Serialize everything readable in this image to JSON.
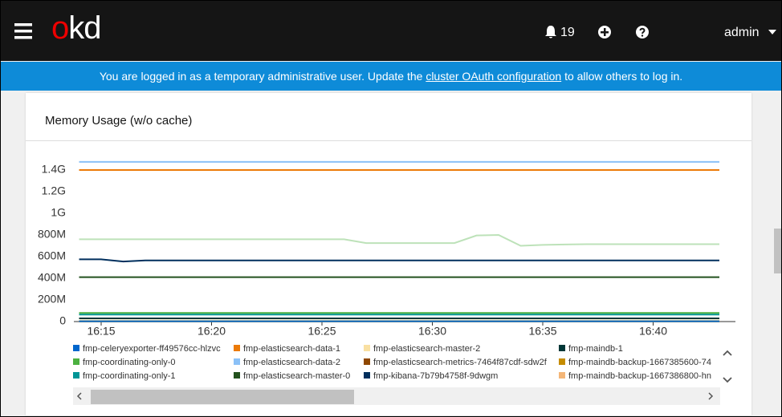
{
  "header": {
    "logo": "okd",
    "notifications": "19",
    "user": "admin"
  },
  "banner": {
    "text_before": "You are logged in as a temporary administrative user. Update the",
    "link": "cluster OAuth configuration",
    "text_after": "to allow others to log in."
  },
  "chart_data": {
    "type": "line",
    "title": "Memory Usage (w/o cache)",
    "x": [
      "16:14",
      "16:15",
      "16:16",
      "16:17",
      "16:18",
      "16:19",
      "16:20",
      "16:21",
      "16:22",
      "16:23",
      "16:24",
      "16:25",
      "16:26",
      "16:27",
      "16:28",
      "16:29",
      "16:30",
      "16:31",
      "16:32",
      "16:33",
      "16:34",
      "16:35",
      "16:36",
      "16:37",
      "16:38",
      "16:39",
      "16:40",
      "16:41",
      "16:42",
      "16:43"
    ],
    "xticks": [
      "16:15",
      "16:20",
      "16:25",
      "16:30",
      "16:35",
      "16:40"
    ],
    "ylim": [
      0,
      1500
    ],
    "yticks": [
      {
        "value": 0,
        "label": "0"
      },
      {
        "value": 200,
        "label": "200M"
      },
      {
        "value": 400,
        "label": "400M"
      },
      {
        "value": 600,
        "label": "600M"
      },
      {
        "value": 800,
        "label": "800M"
      },
      {
        "value": 1000,
        "label": "1G"
      },
      {
        "value": 1200,
        "label": "1.2G"
      },
      {
        "value": 1400,
        "label": "1.4G"
      }
    ],
    "series": [
      {
        "name": "fmp-celeryexporter-ff49576cc-hlzvc",
        "color": "#0066cc",
        "values": [
          3,
          3,
          3,
          3,
          3,
          3,
          3,
          3,
          3,
          3,
          3,
          3,
          3,
          3,
          3,
          3,
          3,
          3,
          3,
          3,
          3,
          3,
          3,
          3,
          3,
          3,
          3,
          3,
          3,
          3
        ]
      },
      {
        "name": "fmp-elasticsearch-data-1",
        "color": "#ec7a08",
        "values": [
          1400,
          1400,
          1400,
          1400,
          1400,
          1400,
          1400,
          1400,
          1400,
          1400,
          1400,
          1400,
          1400,
          1400,
          1400,
          1400,
          1400,
          1400,
          1400,
          1400,
          1400,
          1400,
          1400,
          1400,
          1400,
          1400,
          1400,
          1400,
          1400,
          1400
        ]
      },
      {
        "name": "fmp-elasticsearch-master-2",
        "color": "#f9e0a2",
        "values": [
          10,
          10,
          10,
          10,
          10,
          10,
          10,
          10,
          10,
          10,
          10,
          10,
          10,
          10,
          10,
          10,
          10,
          10,
          10,
          10,
          10,
          10,
          10,
          10,
          10,
          10,
          10,
          10,
          10,
          10
        ]
      },
      {
        "name": "fmp-maindb-1",
        "color": "#003737",
        "values": [
          30,
          30,
          30,
          30,
          30,
          30,
          30,
          30,
          30,
          30,
          30,
          30,
          30,
          30,
          30,
          30,
          30,
          30,
          30,
          30,
          30,
          30,
          30,
          30,
          30,
          30,
          30,
          30,
          30,
          30
        ]
      },
      {
        "name": "fmp-coordinating-only-0",
        "color": "#4cb140",
        "values": [
          80,
          80,
          80,
          80,
          80,
          80,
          80,
          80,
          80,
          80,
          80,
          80,
          80,
          80,
          80,
          80,
          80,
          80,
          80,
          80,
          80,
          80,
          80,
          80,
          80,
          80,
          80,
          80,
          80,
          80
        ]
      },
      {
        "name": "fmp-elasticsearch-data-2",
        "color": "#8bc1f7",
        "values": [
          1475,
          1475,
          1475,
          1475,
          1475,
          1475,
          1475,
          1475,
          1475,
          1475,
          1475,
          1475,
          1475,
          1475,
          1475,
          1475,
          1475,
          1475,
          1475,
          1475,
          1475,
          1475,
          1475,
          1475,
          1475,
          1475,
          1475,
          1475,
          1475,
          1475
        ]
      },
      {
        "name": "fmp-elasticsearch-metrics-7464f87cdf-sdw2f",
        "color": "#8f4700",
        "values": [
          6,
          6,
          6,
          6,
          6,
          6,
          6,
          6,
          6,
          6,
          6,
          6,
          6,
          6,
          6,
          6,
          6,
          6,
          6,
          6,
          6,
          6,
          6,
          6,
          6,
          6,
          6,
          6,
          6,
          6
        ]
      },
      {
        "name": "fmp-maindb-backup-1667385600-74",
        "color": "#c58c00",
        "values": [
          2,
          2,
          2,
          2,
          2,
          2,
          2,
          2,
          2,
          2,
          2,
          2,
          2,
          2,
          2,
          2,
          2,
          2,
          2,
          2,
          2,
          2,
          2,
          2,
          2,
          2,
          2,
          2,
          2,
          2
        ]
      },
      {
        "name": "fmp-coordinating-only-1",
        "color": "#009596",
        "values": [
          65,
          65,
          65,
          65,
          65,
          65,
          65,
          65,
          65,
          65,
          65,
          65,
          65,
          65,
          65,
          65,
          65,
          65,
          65,
          65,
          65,
          65,
          65,
          65,
          65,
          65,
          65,
          65,
          65,
          65
        ]
      },
      {
        "name": "fmp-elasticsearch-master-0",
        "color": "#23511e",
        "values": [
          410,
          410,
          410,
          410,
          410,
          410,
          410,
          410,
          410,
          410,
          410,
          410,
          410,
          410,
          410,
          410,
          410,
          410,
          410,
          410,
          410,
          410,
          410,
          410,
          410,
          410,
          410,
          410,
          410,
          410
        ]
      },
      {
        "name": "fmp-kibana-7b79b4758f-9dwgm",
        "color": "#002f5d",
        "values": [
          575,
          575,
          555,
          565,
          565,
          565,
          565,
          565,
          565,
          565,
          565,
          565,
          565,
          565,
          565,
          565,
          565,
          565,
          565,
          565,
          565,
          565,
          565,
          565,
          565,
          565,
          565,
          565,
          565,
          565
        ]
      },
      {
        "name": "fmp-maindb-backup-1667386800-hn",
        "color": "#f4b678",
        "values": [
          1,
          1,
          1,
          1,
          1,
          1,
          1,
          1,
          1,
          1,
          1,
          1,
          1,
          1,
          1,
          1,
          1,
          1,
          1,
          1,
          1,
          1,
          1,
          1,
          1,
          1,
          1,
          1,
          1,
          1
        ]
      },
      {
        "color": "#bde2b9",
        "values": [
          760,
          760,
          760,
          760,
          760,
          760,
          760,
          760,
          760,
          760,
          760,
          760,
          760,
          725,
          725,
          725,
          725,
          725,
          795,
          800,
          700,
          708,
          712,
          715,
          715,
          715,
          715,
          715,
          715,
          715
        ]
      }
    ]
  }
}
